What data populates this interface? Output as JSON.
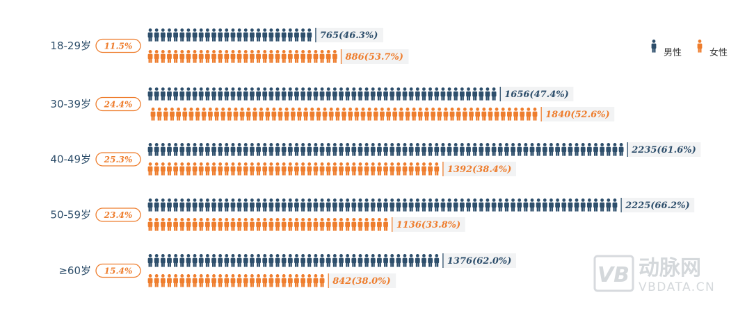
{
  "colors": {
    "male": "#2d4e6b",
    "female": "#ee7d2d",
    "watermark": "#d3d7db"
  },
  "legend": {
    "male": "男性",
    "female": "女性",
    "placement": "top-right"
  },
  "watermark": {
    "logo": "VB",
    "name": "动脉网",
    "site": "VBDATA.CN"
  },
  "chart_data": {
    "type": "pictograph-bar",
    "title": "",
    "categories": [
      "18-29岁",
      "30-39岁",
      "40-49岁",
      "50-59岁",
      "≥60岁"
    ],
    "group_share": [
      "11.5%",
      "24.4%",
      "25.3%",
      "23.4%",
      "15.4%"
    ],
    "series": [
      {
        "name": "男性",
        "values": [
          765,
          1656,
          2235,
          2225,
          1376
        ],
        "labels": [
          "765(46.3%)",
          "1656(47.4%)",
          "2235(61.6%)",
          "2225(66.2%)",
          "1376(62.0%)"
        ]
      },
      {
        "name": "女性",
        "values": [
          886,
          1840,
          1392,
          1136,
          842
        ],
        "labels": [
          "886(53.7%)",
          "1840(52.6%)",
          "1392(38.4%)",
          "1136(33.8%)",
          "842(38.0%)"
        ]
      }
    ]
  }
}
